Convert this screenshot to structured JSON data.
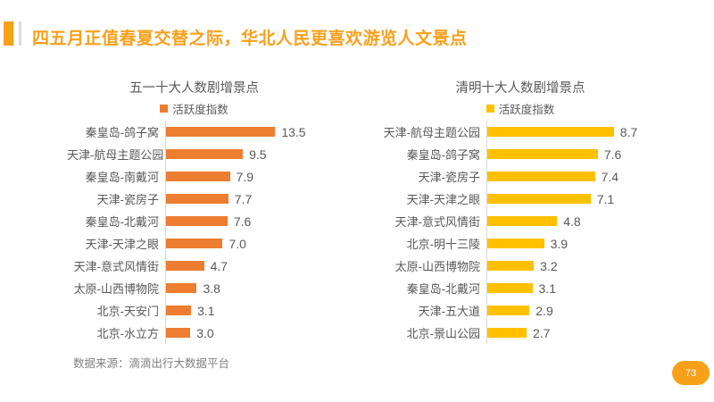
{
  "header": {
    "title": "四五月正值春夏交替之际，华北人民更喜欢游览人文景点"
  },
  "chart_data": [
    {
      "type": "bar",
      "orientation": "horizontal",
      "title": "五一十大人数剧增景点",
      "legend": "活跃度指数",
      "legend_position": "top",
      "bar_color": "#ED7D31",
      "grid": false,
      "xlim": [
        0,
        16
      ],
      "categories": [
        "秦皇岛-鸽子窝",
        "天津-航母主题公园",
        "秦皇岛-南戴河",
        "天津-瓷房子",
        "秦皇岛-北戴河",
        "天津-天津之眼",
        "天津-意式风情街",
        "太原-山西博物院",
        "北京-天安门",
        "北京-水立方"
      ],
      "values": [
        13.5,
        9.5,
        7.9,
        7.7,
        7.6,
        7.0,
        4.7,
        3.8,
        3.1,
        3.0
      ]
    },
    {
      "type": "bar",
      "orientation": "horizontal",
      "title": "清明十大人数剧增景点",
      "legend": "活跃度指数",
      "legend_position": "top",
      "bar_color": "#FFC000",
      "grid": false,
      "xlim": [
        0,
        10
      ],
      "categories": [
        "天津-航母主题公园",
        "秦皇岛-鸽子窝",
        "天津-瓷房子",
        "天津-天津之眼",
        "天津-意式风情街",
        "北京-明十三陵",
        "太原-山西博物院",
        "秦皇岛-北戴河",
        "天津-五大道",
        "北京-景山公园"
      ],
      "values": [
        8.7,
        7.6,
        7.4,
        7.1,
        4.8,
        3.9,
        3.2,
        3.1,
        2.9,
        2.7
      ]
    }
  ],
  "footer": {
    "source": "数据来源：滴滴出行大数据平台",
    "page_number": "73"
  },
  "colors": {
    "accent_orange": "#F9A01B",
    "bar_orange": "#ED7D31",
    "bar_yellow": "#FFC000",
    "axis_gray": "#D9D9D9",
    "text_gray": "#595959"
  }
}
